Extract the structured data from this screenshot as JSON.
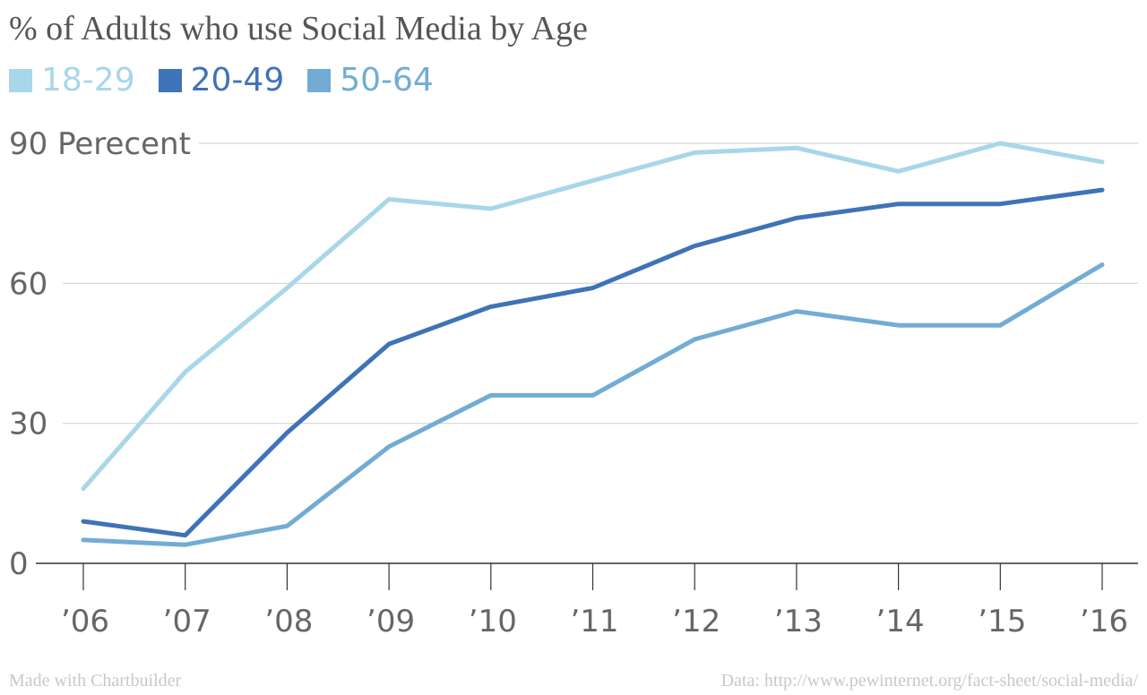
{
  "chart_data": {
    "type": "line",
    "title": "% of Adults who use Social Media by Age",
    "categories": [
      "’06",
      "’07",
      "’08",
      "’09",
      "’10",
      "’11",
      "’12",
      "’13",
      "’14",
      "’15",
      "’16"
    ],
    "series": [
      {
        "name": "18-29",
        "color": "#a8d6ea",
        "values": [
          16,
          41,
          59,
          78,
          76,
          82,
          88,
          89,
          84,
          90,
          86
        ]
      },
      {
        "name": "20-49",
        "color": "#3f73b8",
        "values": [
          9,
          6,
          28,
          47,
          55,
          59,
          68,
          74,
          77,
          77,
          80
        ]
      },
      {
        "name": "50-64",
        "color": "#72acd4",
        "values": [
          5,
          4,
          8,
          25,
          36,
          36,
          48,
          54,
          51,
          51,
          64
        ]
      }
    ],
    "y_ticks": [
      {
        "value": 0,
        "label": "0"
      },
      {
        "value": 30,
        "label": "30"
      },
      {
        "value": 60,
        "label": "60"
      },
      {
        "value": 90,
        "label": "90 Perecent"
      }
    ],
    "ylim": [
      0,
      90
    ],
    "grid": true,
    "legend_position": "top-left"
  },
  "footer": {
    "credit": "Made with Chartbuilder",
    "source": "Data: http://www.pewinternet.org/fact-sheet/social-media/"
  }
}
